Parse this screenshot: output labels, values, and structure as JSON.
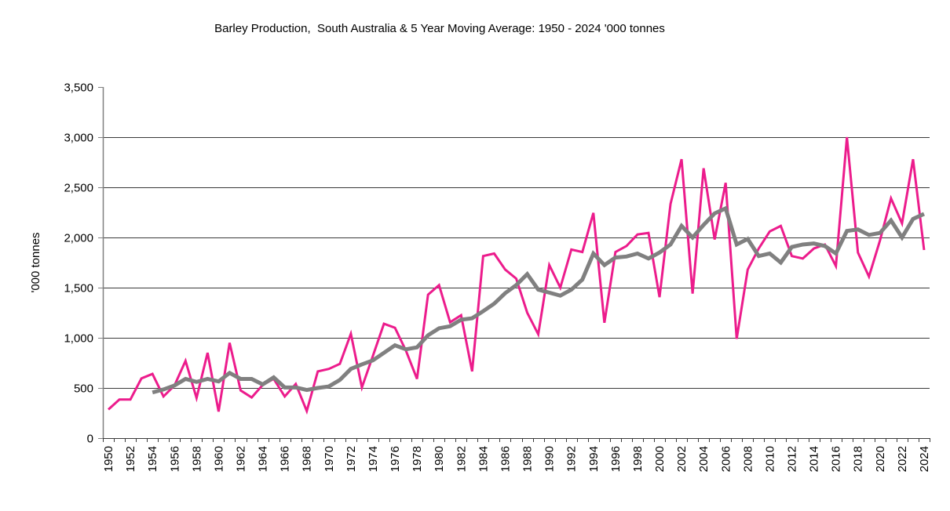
{
  "chart_data": {
    "type": "line",
    "title": "Barley Production,  South Australia & 5 Year Moving Average: 1950 - 2024 '000 tonnes",
    "xlabel": "",
    "ylabel": "'000 tonnes",
    "ylim": [
      0,
      3500
    ],
    "yticks": [
      0,
      500,
      1000,
      1500,
      2000,
      2500,
      3000,
      3500
    ],
    "ytick_labels": [
      "0",
      "500",
      "1,000",
      "1,500",
      "2,000",
      "2,500",
      "3,000",
      "3,500"
    ],
    "grid": true,
    "legend": "none",
    "x": [
      1950,
      1951,
      1952,
      1953,
      1954,
      1955,
      1956,
      1957,
      1958,
      1959,
      1960,
      1961,
      1962,
      1963,
      1964,
      1965,
      1966,
      1967,
      1968,
      1969,
      1970,
      1971,
      1972,
      1973,
      1974,
      1975,
      1976,
      1977,
      1978,
      1979,
      1980,
      1981,
      1982,
      1983,
      1984,
      1985,
      1986,
      1987,
      1988,
      1989,
      1990,
      1991,
      1992,
      1993,
      1994,
      1995,
      1996,
      1997,
      1998,
      1999,
      2000,
      2001,
      2002,
      2003,
      2004,
      2005,
      2006,
      2007,
      2008,
      2009,
      2010,
      2011,
      2012,
      2013,
      2014,
      2015,
      2016,
      2017,
      2018,
      2019,
      2020,
      2021,
      2022,
      2023,
      2024
    ],
    "xtick_every": 2,
    "series": [
      {
        "name": "Barley Production",
        "color": "#ec1c8c",
        "values": [
          285,
          385,
          385,
          595,
          640,
          415,
          525,
          770,
          400,
          850,
          265,
          950,
          475,
          405,
          530,
          590,
          415,
          540,
          270,
          665,
          690,
          740,
          1040,
          505,
          820,
          1140,
          1100,
          870,
          590,
          1430,
          1525,
          1155,
          1225,
          665,
          1815,
          1840,
          1680,
          1590,
          1250,
          1035,
          1725,
          1500,
          1880,
          1855,
          2245,
          1150,
          1855,
          1915,
          2030,
          2045,
          1405,
          2335,
          2780,
          1440,
          2690,
          1980,
          2545,
          990,
          1680,
          1890,
          2060,
          2115,
          1815,
          1790,
          1890,
          1930,
          1715,
          3000,
          1850,
          1610,
          1970,
          2390,
          2140,
          2780,
          1875
        ]
      },
      {
        "name": "5 Year Moving Average",
        "color": "#808080",
        "values": [
          null,
          null,
          null,
          null,
          455,
          485,
          525,
          590,
          560,
          590,
          565,
          650,
          590,
          590,
          535,
          605,
          505,
          505,
          480,
          500,
          515,
          580,
          690,
          735,
          775,
          850,
          925,
          885,
          905,
          1025,
          1095,
          1115,
          1180,
          1195,
          1265,
          1340,
          1445,
          1525,
          1635,
          1480,
          1450,
          1420,
          1480,
          1580,
          1840,
          1725,
          1800,
          1810,
          1840,
          1790,
          1850,
          1930,
          2115,
          2000,
          2125,
          2240,
          2290,
          1930,
          1985,
          1815,
          1840,
          1750,
          1905,
          1930,
          1940,
          1915,
          1840,
          2065,
          2080,
          2025,
          2045,
          2170,
          2000,
          2185,
          2235
        ]
      }
    ]
  }
}
